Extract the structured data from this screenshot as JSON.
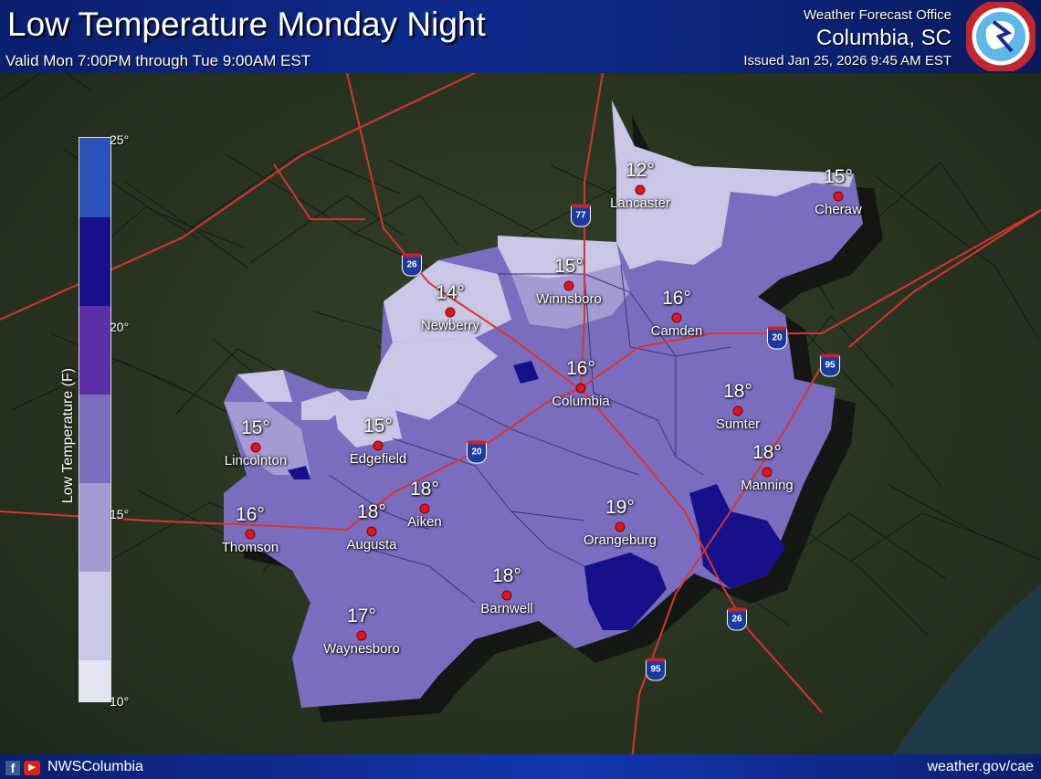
{
  "header": {
    "title": "Low Temperature Monday Night",
    "valid": "Valid Mon 7:00PM through Tue 9:00AM EST",
    "office_label": "Weather Forecast Office",
    "office_city": "Columbia, SC",
    "issued": "Issued Jan 25, 2026 9:45 AM EST",
    "logo_text": "NATIONAL WEATHER SERVICE"
  },
  "legend": {
    "title": "Low Temperature (F)",
    "ticks": [
      "25°",
      "20°",
      "15°",
      "10°"
    ],
    "range": [
      10,
      25
    ],
    "colors": [
      "#2a52b8",
      "#16118a",
      "#5a2fa8",
      "#7a6dc0",
      "#a39bd2",
      "#c9c6e6",
      "#e4e3f2"
    ]
  },
  "cities": [
    {
      "name": "Lancaster",
      "temp": "12°"
    },
    {
      "name": "Cheraw",
      "temp": "15°"
    },
    {
      "name": "Winnsboro",
      "temp": "15°"
    },
    {
      "name": "Newberry",
      "temp": "14°"
    },
    {
      "name": "Camden",
      "temp": "16°"
    },
    {
      "name": "Columbia",
      "temp": "16°"
    },
    {
      "name": "Sumter",
      "temp": "18°"
    },
    {
      "name": "Lincolnton",
      "temp": "15°"
    },
    {
      "name": "Edgefield",
      "temp": "15°"
    },
    {
      "name": "Manning",
      "temp": "18°"
    },
    {
      "name": "Aiken",
      "temp": "18°"
    },
    {
      "name": "Thomson",
      "temp": "16°"
    },
    {
      "name": "Augusta",
      "temp": "18°"
    },
    {
      "name": "Orangeburg",
      "temp": "19°"
    },
    {
      "name": "Barnwell",
      "temp": "18°"
    },
    {
      "name": "Waynesboro",
      "temp": "17°"
    }
  ],
  "interstates": [
    "26",
    "77",
    "20",
    "95",
    "20",
    "26",
    "95"
  ],
  "footer": {
    "social_handle": "NWSColumbia",
    "website": "weather.gov/cae"
  },
  "colors": {
    "header_bg": "#0d2a8c",
    "city_dot": "#e0161b",
    "roads": "#d8352f"
  }
}
